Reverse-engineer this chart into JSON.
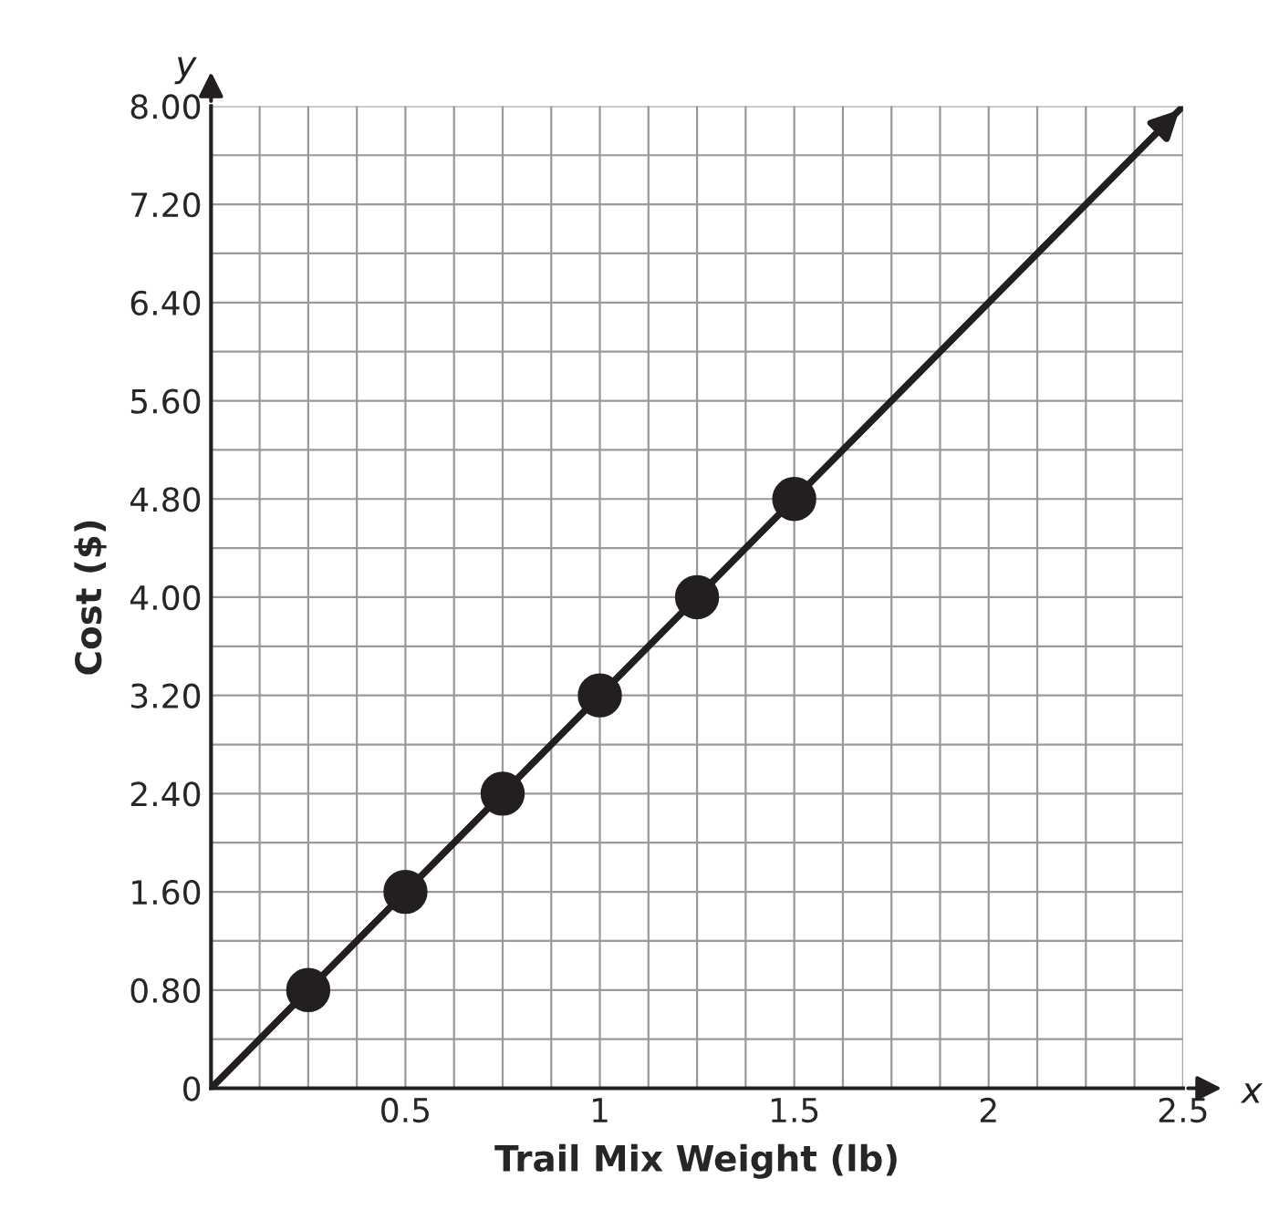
{
  "chart_data": {
    "type": "scatter",
    "xlabel": "Trail Mix Weight (lb)",
    "ylabel": "Cost ($)",
    "annotations": [
      "x",
      "y"
    ],
    "series": [
      {
        "type": "line",
        "marker": "none",
        "color": "#231f20",
        "x": [
          0,
          2.5
        ],
        "values": [
          0,
          8.0
        ]
      },
      {
        "color": "#231f20",
        "x": [
          0.25,
          0.5,
          0.75,
          1,
          1.25,
          1.5
        ],
        "values": [
          0.8,
          1.6,
          2.4,
          3.2,
          4.0,
          4.8
        ]
      }
    ],
    "marker": "circle",
    "grid": true,
    "xlim": [
      0,
      2.5
    ],
    "ylim": [
      0,
      8.0
    ],
    "xticks": [
      0.5,
      1,
      1.5,
      2,
      2.5
    ],
    "yticks": [
      0,
      {
        "value": 0.8,
        "label": "0.80"
      },
      {
        "value": 1.6,
        "label": "1.60"
      },
      {
        "value": 2.4,
        "label": "2.40"
      },
      {
        "value": 3.2,
        "label": "3.20"
      },
      {
        "value": 4.0,
        "label": "4.00"
      },
      {
        "value": 4.8,
        "label": "4.80"
      },
      {
        "value": 5.6,
        "label": "5.60"
      },
      {
        "value": 6.4,
        "label": "6.40"
      },
      {
        "value": 7.2,
        "label": "7.20"
      },
      {
        "value": 8.0,
        "label": "8.00"
      }
    ]
  }
}
